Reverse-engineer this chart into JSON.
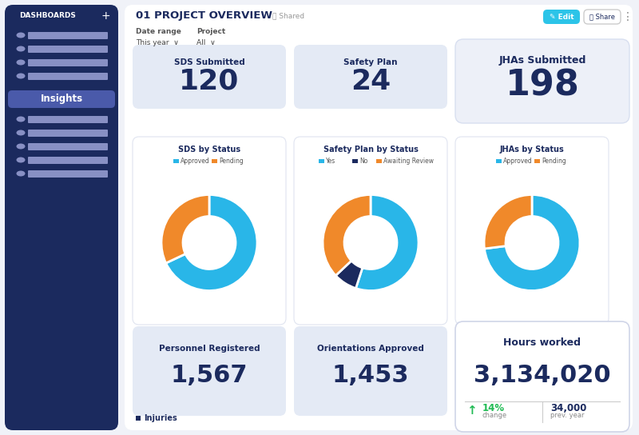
{
  "sidebar_bg": "#1b2a5e",
  "sidebar_title": "DASHBOARDS",
  "sidebar_highlight": "Insights",
  "sidebar_highlight_color": "#4a5aaa",
  "sidebar_item_color": "#8890c4",
  "header_title": "01 PROJECT OVERVIEW",
  "header_shared": "Shared",
  "date_range_label": "Date range",
  "date_range_value": "This year  ∨",
  "project_label": "Project",
  "project_value": "All  ∨",
  "stat_cards": [
    {
      "label": "SDS Submitted",
      "value": "120"
    },
    {
      "label": "Safety Plan",
      "value": "24"
    }
  ],
  "jha_card": {
    "label": "JHAs Submitted",
    "value": "198"
  },
  "donut1_title": "SDS by Status",
  "donut1_legend": [
    "Approved",
    "Pending"
  ],
  "donut1_colors": [
    "#29b6e8",
    "#f0892a"
  ],
  "donut1_values": [
    68,
    32
  ],
  "donut2_title": "Safety Plan by Status",
  "donut2_legend": [
    "Yes",
    "No",
    "Awaiting Review"
  ],
  "donut2_colors": [
    "#29b6e8",
    "#1b2a5e",
    "#f0892a"
  ],
  "donut2_values": [
    55,
    8,
    37
  ],
  "donut3_title": "JHAs by Status",
  "donut3_legend": [
    "Approved",
    "Pending"
  ],
  "donut3_colors": [
    "#29b6e8",
    "#f0892a"
  ],
  "donut3_values": [
    73,
    27
  ],
  "bottom_cards": [
    {
      "label": "Personnel Registered",
      "value": "1,567"
    },
    {
      "label": "Orientations Approved",
      "value": "1,453"
    }
  ],
  "hours_card": {
    "label": "Hours worked",
    "value": "3,134,020",
    "change_pct": "14%",
    "change_label": "change",
    "prev_year": "34,000",
    "prev_year_label": "prev. year"
  },
  "injuries_label": "Injuries",
  "edit_btn_color": "#2cc4e8",
  "text_dark": "#1b2a5e",
  "text_grey": "#888888",
  "green_arrow": "#22bb55",
  "card_bg": "#e4eaf5",
  "card_bg_light": "#edf0f8",
  "white": "#ffffff",
  "fig_bg": "#f0f2f8"
}
